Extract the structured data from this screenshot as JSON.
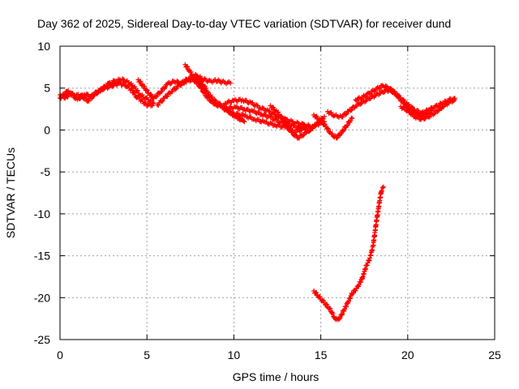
{
  "chart_data": {
    "type": "scatter",
    "title": "Day 362 of 2025, Sidereal Day-to-day VTEC variation (SDTVAR) for receiver dund",
    "xlabel": "GPS time / hours",
    "ylabel": "SDTVAR / TECUs",
    "xlim": [
      0,
      25
    ],
    "ylim": [
      -25,
      10
    ],
    "xticks": [
      0,
      5,
      10,
      15,
      20,
      25
    ],
    "yticks": [
      10,
      5,
      0,
      -5,
      -10,
      -15,
      -20,
      -25
    ],
    "grid": true,
    "legend": "none",
    "series": [
      {
        "name": "SDTVAR",
        "color": "#ff0000",
        "marker": "+",
        "tracks": [
          [
            [
              0.0,
              4.2
            ],
            [
              0.3,
              3.8
            ],
            [
              0.6,
              4.4
            ],
            [
              1.0,
              3.6
            ],
            [
              1.4,
              4.3
            ],
            [
              1.8,
              4.0
            ],
            [
              2.2,
              4.7
            ],
            [
              2.6,
              5.0
            ],
            [
              3.0,
              5.3
            ],
            [
              3.4,
              5.6
            ],
            [
              3.8,
              5.3
            ],
            [
              4.1,
              4.8
            ],
            [
              4.4,
              4.0
            ],
            [
              4.7,
              3.5
            ],
            [
              5.0,
              3.0
            ],
            [
              5.3,
              2.9
            ]
          ],
          [
            [
              0.0,
              3.8
            ],
            [
              0.4,
              4.6
            ],
            [
              0.8,
              4.2
            ],
            [
              1.2,
              4.1
            ],
            [
              1.6,
              3.5
            ],
            [
              2.0,
              4.2
            ],
            [
              2.4,
              4.9
            ],
            [
              2.8,
              5.5
            ],
            [
              3.2,
              5.9
            ],
            [
              3.6,
              6.0
            ],
            [
              4.0,
              5.6
            ],
            [
              4.3,
              5.0
            ],
            [
              4.6,
              4.2
            ],
            [
              5.0,
              3.7
            ],
            [
              5.4,
              3.2
            ]
          ],
          [
            [
              4.5,
              6.0
            ],
            [
              4.8,
              5.2
            ],
            [
              5.1,
              4.4
            ],
            [
              5.4,
              3.8
            ],
            [
              5.8,
              4.6
            ],
            [
              6.2,
              5.5
            ],
            [
              6.6,
              5.8
            ],
            [
              7.0,
              5.6
            ],
            [
              7.4,
              6.2
            ],
            [
              7.8,
              6.5
            ],
            [
              8.2,
              6.1
            ],
            [
              8.6,
              5.8
            ],
            [
              9.0,
              5.9
            ],
            [
              9.4,
              5.7
            ],
            [
              9.8,
              5.6
            ]
          ],
          [
            [
              5.6,
              3.0
            ],
            [
              6.0,
              3.8
            ],
            [
              6.4,
              4.6
            ],
            [
              6.8,
              5.2
            ],
            [
              7.2,
              5.8
            ],
            [
              7.6,
              6.0
            ],
            [
              8.0,
              5.6
            ],
            [
              8.4,
              5.0
            ]
          ],
          [
            [
              7.2,
              7.8
            ],
            [
              7.5,
              6.9
            ],
            [
              7.8,
              5.9
            ],
            [
              8.1,
              5.0
            ],
            [
              8.4,
              4.1
            ],
            [
              8.7,
              3.4
            ],
            [
              9.0,
              3.0
            ],
            [
              9.3,
              2.7
            ],
            [
              9.7,
              2.2
            ],
            [
              10.1,
              1.6
            ],
            [
              10.5,
              1.2
            ]
          ],
          [
            [
              7.8,
              6.6
            ],
            [
              8.1,
              5.7
            ],
            [
              8.4,
              4.7
            ],
            [
              8.7,
              3.9
            ],
            [
              9.0,
              3.3
            ],
            [
              9.4,
              2.8
            ],
            [
              9.8,
              2.1
            ],
            [
              10.2,
              1.5
            ],
            [
              10.6,
              1.0
            ]
          ],
          [
            [
              9.5,
              3.2
            ],
            [
              10.0,
              3.5
            ],
            [
              10.5,
              3.6
            ],
            [
              11.0,
              3.2
            ],
            [
              11.5,
              2.7
            ],
            [
              12.0,
              2.2
            ],
            [
              12.5,
              1.6
            ],
            [
              13.0,
              1.2
            ],
            [
              13.5,
              0.9
            ],
            [
              14.0,
              0.6
            ],
            [
              14.5,
              0.4
            ]
          ],
          [
            [
              9.6,
              2.6
            ],
            [
              10.1,
              2.7
            ],
            [
              10.6,
              2.5
            ],
            [
              11.1,
              2.2
            ],
            [
              11.6,
              1.9
            ],
            [
              12.1,
              1.5
            ],
            [
              12.6,
              1.0
            ],
            [
              13.1,
              0.7
            ],
            [
              13.6,
              0.4
            ],
            [
              14.1,
              0.2
            ]
          ],
          [
            [
              10.0,
              2.0
            ],
            [
              10.6,
              1.7
            ],
            [
              11.2,
              1.3
            ],
            [
              11.8,
              0.9
            ],
            [
              12.4,
              0.6
            ],
            [
              13.0,
              0.3
            ],
            [
              13.5,
              -0.2
            ],
            [
              14.0,
              0.1
            ],
            [
              14.6,
              0.5
            ],
            [
              15.2,
              1.0
            ]
          ],
          [
            [
              12.1,
              2.9
            ],
            [
              12.5,
              2.1
            ],
            [
              12.9,
              1.1
            ],
            [
              13.3,
              -0.3
            ],
            [
              13.7,
              -0.9
            ],
            [
              14.2,
              -0.3
            ],
            [
              14.7,
              0.6
            ],
            [
              15.2,
              1.6
            ]
          ],
          [
            [
              14.6,
              1.8
            ],
            [
              15.0,
              1.1
            ],
            [
              15.3,
              0.4
            ],
            [
              15.6,
              -0.5
            ],
            [
              15.9,
              -0.9
            ],
            [
              16.2,
              -0.3
            ],
            [
              16.5,
              0.6
            ],
            [
              16.8,
              1.4
            ]
          ],
          [
            [
              15.4,
              2.2
            ],
            [
              15.8,
              1.7
            ],
            [
              16.2,
              1.6
            ],
            [
              16.6,
              2.2
            ],
            [
              17.0,
              2.9
            ],
            [
              17.4,
              3.3
            ],
            [
              17.8,
              3.8
            ],
            [
              18.2,
              4.2
            ],
            [
              18.6,
              4.6
            ],
            [
              19.0,
              4.8
            ],
            [
              19.4,
              4.2
            ],
            [
              19.8,
              3.2
            ],
            [
              20.2,
              2.2
            ],
            [
              20.6,
              1.9
            ],
            [
              21.0,
              1.8
            ],
            [
              21.4,
              2.3
            ]
          ],
          [
            [
              17.0,
              3.6
            ],
            [
              17.4,
              3.9
            ],
            [
              17.8,
              4.4
            ],
            [
              18.2,
              4.9
            ],
            [
              18.6,
              5.3
            ],
            [
              19.0,
              4.9
            ],
            [
              19.4,
              4.1
            ],
            [
              19.8,
              3.1
            ]
          ],
          [
            [
              18.8,
              5.0
            ],
            [
              19.2,
              4.5
            ],
            [
              19.6,
              3.8
            ],
            [
              20.0,
              3.0
            ],
            [
              20.4,
              2.4
            ],
            [
              20.8,
              2.0
            ],
            [
              21.2,
              2.4
            ],
            [
              21.6,
              2.8
            ],
            [
              22.0,
              3.2
            ],
            [
              22.4,
              3.6
            ],
            [
              22.7,
              3.8
            ]
          ],
          [
            [
              19.6,
              2.8
            ],
            [
              20.0,
              2.3
            ],
            [
              20.4,
              1.6
            ],
            [
              20.8,
              1.3
            ],
            [
              21.2,
              1.6
            ],
            [
              21.6,
              2.1
            ],
            [
              22.0,
              2.8
            ],
            [
              22.4,
              3.3
            ],
            [
              22.7,
              3.6
            ]
          ],
          [
            [
              14.6,
              -19.2
            ],
            [
              14.9,
              -19.9
            ],
            [
              15.2,
              -20.6
            ],
            [
              15.5,
              -21.3
            ],
            [
              15.8,
              -22.4
            ],
            [
              16.0,
              -22.7
            ],
            [
              16.2,
              -22.0
            ],
            [
              16.5,
              -20.8
            ],
            [
              16.8,
              -19.5
            ],
            [
              17.1,
              -18.8
            ],
            [
              17.4,
              -17.6
            ],
            [
              17.6,
              -16.3
            ],
            [
              17.8,
              -15.4
            ],
            [
              18.0,
              -13.9
            ],
            [
              18.1,
              -12.4
            ],
            [
              18.2,
              -10.9
            ],
            [
              18.3,
              -9.6
            ],
            [
              18.4,
              -8.2
            ],
            [
              18.5,
              -7.1
            ],
            [
              18.6,
              -6.8
            ]
          ]
        ]
      }
    ]
  }
}
